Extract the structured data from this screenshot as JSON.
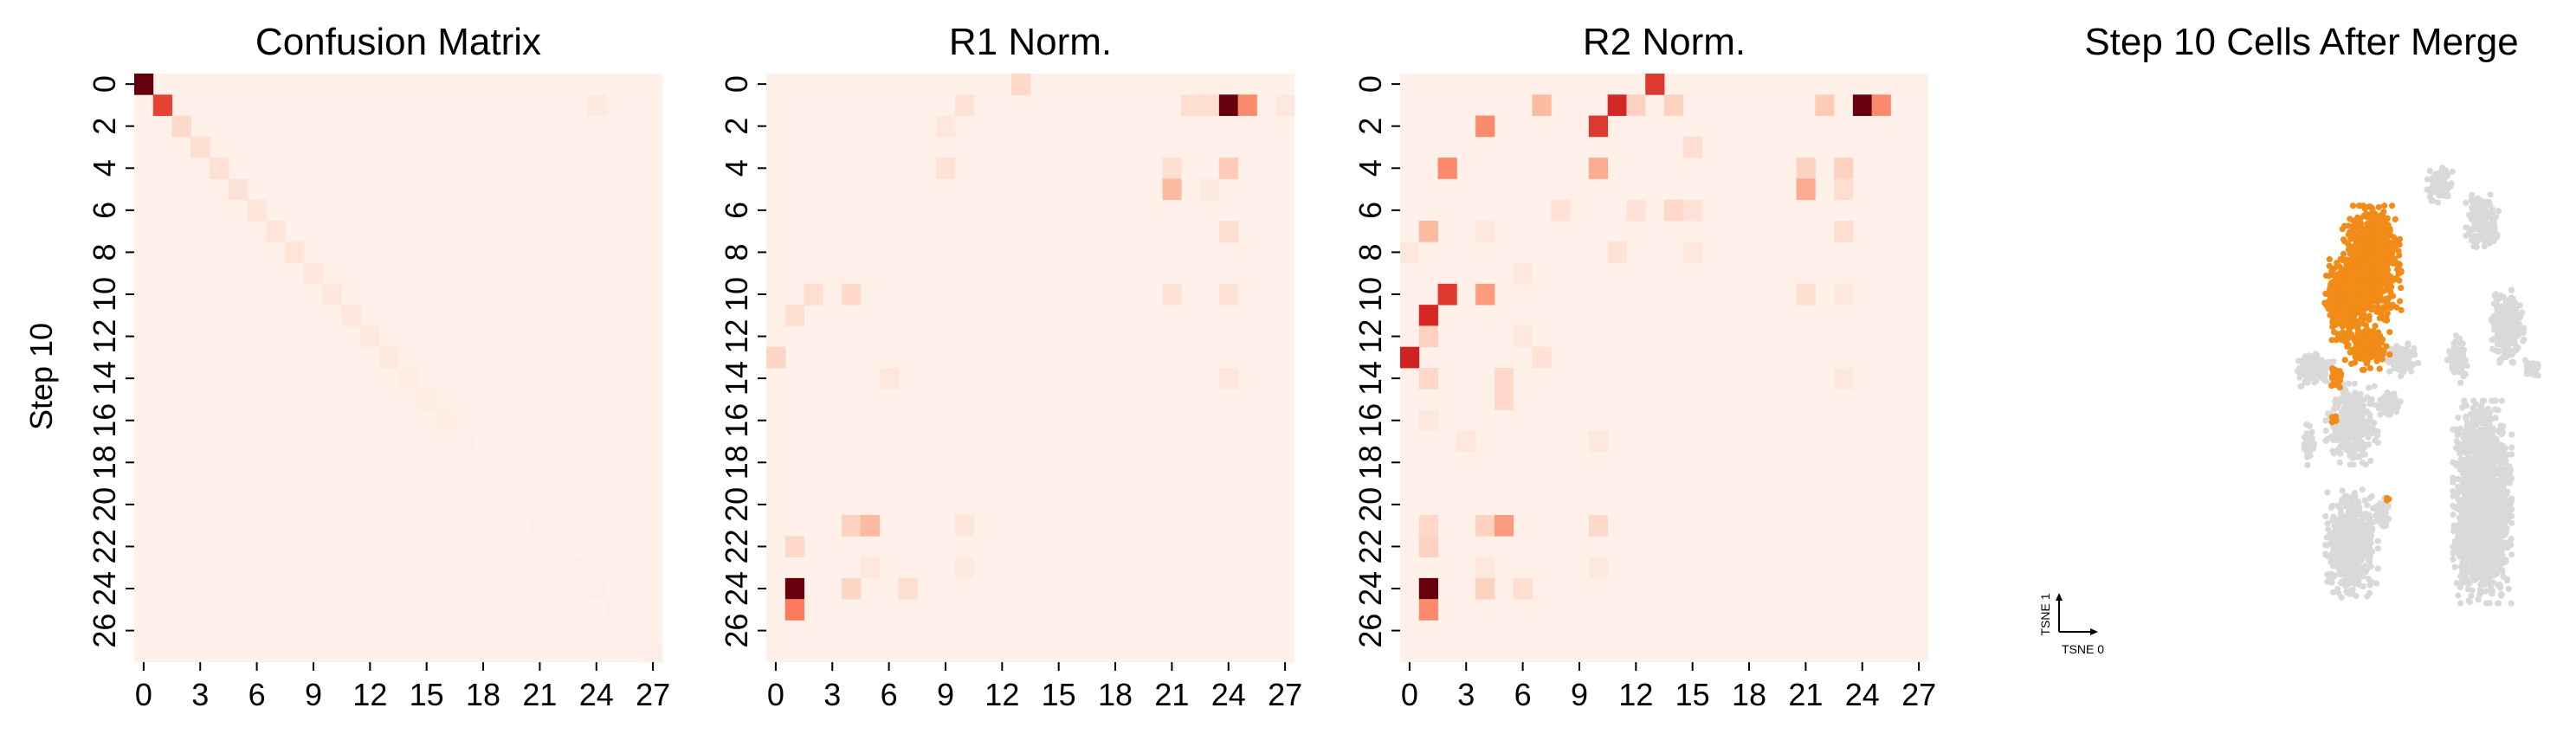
{
  "figure": {
    "ylabel": "Step 10",
    "tsne_axis_x": "TSNE 0",
    "tsne_axis_y": "TSNE 1"
  },
  "chart_data": [
    {
      "type": "heatmap",
      "title": "Confusion Matrix",
      "ylabel": "Step 10",
      "xlabel": "",
      "n_rows": 28,
      "n_cols": 28,
      "x_ticks": [
        0,
        3,
        6,
        9,
        12,
        15,
        18,
        21,
        24,
        27
      ],
      "y_ticks": [
        0,
        2,
        4,
        6,
        8,
        10,
        12,
        14,
        16,
        18,
        20,
        22,
        24,
        26
      ],
      "colormap": [
        "#fff5f0",
        "#fcbba1",
        "#fb6a4a",
        "#cb181d",
        "#67000d"
      ],
      "background_value": 0.02,
      "cells": [
        [
          0,
          0,
          1.0
        ],
        [
          1,
          1,
          0.62
        ],
        [
          2,
          2,
          0.12
        ],
        [
          3,
          3,
          0.1
        ],
        [
          4,
          4,
          0.09
        ],
        [
          5,
          5,
          0.08
        ],
        [
          6,
          6,
          0.07
        ],
        [
          7,
          7,
          0.07
        ],
        [
          8,
          8,
          0.07
        ],
        [
          9,
          9,
          0.06
        ],
        [
          10,
          10,
          0.06
        ],
        [
          11,
          11,
          0.06
        ],
        [
          12,
          12,
          0.05
        ],
        [
          13,
          13,
          0.05
        ],
        [
          14,
          14,
          0.04
        ],
        [
          15,
          15,
          0.04
        ],
        [
          16,
          16,
          0.04
        ],
        [
          17,
          17,
          0.03
        ],
        [
          18,
          18,
          0.03
        ],
        [
          19,
          19,
          0.03
        ],
        [
          20,
          20,
          0.03
        ],
        [
          21,
          21,
          0.03
        ],
        [
          22,
          22,
          0.03
        ],
        [
          23,
          23,
          0.03
        ],
        [
          24,
          24,
          0.03
        ],
        [
          25,
          25,
          0.03
        ],
        [
          26,
          26,
          0.03
        ],
        [
          27,
          27,
          0.03
        ],
        [
          1,
          24,
          0.05
        ]
      ]
    },
    {
      "type": "heatmap",
      "title": "R1 Norm.",
      "n_rows": 28,
      "n_cols": 28,
      "x_ticks": [
        0,
        3,
        6,
        9,
        12,
        15,
        18,
        21,
        24,
        27
      ],
      "y_ticks": [
        0,
        2,
        4,
        6,
        8,
        10,
        12,
        14,
        16,
        18,
        20,
        22,
        24,
        26
      ],
      "colormap": [
        "#fff5f0",
        "#fcbba1",
        "#fb6a4a",
        "#cb181d",
        "#67000d"
      ],
      "background_value": 0.02,
      "cells": [
        [
          0,
          13,
          0.12
        ],
        [
          1,
          10,
          0.08
        ],
        [
          1,
          22,
          0.1
        ],
        [
          1,
          23,
          0.1
        ],
        [
          1,
          24,
          1.0
        ],
        [
          1,
          25,
          0.4
        ],
        [
          1,
          27,
          0.06
        ],
        [
          2,
          9,
          0.06
        ],
        [
          4,
          9,
          0.08
        ],
        [
          4,
          21,
          0.1
        ],
        [
          4,
          24,
          0.18
        ],
        [
          5,
          21,
          0.25
        ],
        [
          5,
          23,
          0.05
        ],
        [
          7,
          24,
          0.1
        ],
        [
          10,
          2,
          0.1
        ],
        [
          10,
          4,
          0.12
        ],
        [
          10,
          21,
          0.08
        ],
        [
          10,
          24,
          0.08
        ],
        [
          11,
          1,
          0.1
        ],
        [
          13,
          0,
          0.14
        ],
        [
          14,
          6,
          0.06
        ],
        [
          14,
          24,
          0.06
        ],
        [
          21,
          4,
          0.15
        ],
        [
          21,
          5,
          0.25
        ],
        [
          21,
          10,
          0.07
        ],
        [
          22,
          1,
          0.12
        ],
        [
          23,
          5,
          0.06
        ],
        [
          23,
          10,
          0.05
        ],
        [
          24,
          1,
          1.0
        ],
        [
          24,
          4,
          0.14
        ],
        [
          24,
          7,
          0.1
        ],
        [
          25,
          1,
          0.45
        ]
      ]
    },
    {
      "type": "heatmap",
      "title": "R2 Norm.",
      "n_rows": 28,
      "n_cols": 28,
      "x_ticks": [
        0,
        3,
        6,
        9,
        12,
        15,
        18,
        21,
        24,
        27
      ],
      "y_ticks": [
        0,
        2,
        4,
        6,
        8,
        10,
        12,
        14,
        16,
        18,
        20,
        22,
        24,
        26
      ],
      "colormap": [
        "#fff5f0",
        "#fcbba1",
        "#fb6a4a",
        "#cb181d",
        "#67000d"
      ],
      "background_value": 0.02,
      "cells": [
        [
          0,
          13,
          0.65
        ],
        [
          1,
          7,
          0.25
        ],
        [
          1,
          11,
          0.7
        ],
        [
          1,
          12,
          0.15
        ],
        [
          1,
          14,
          0.15
        ],
        [
          1,
          22,
          0.18
        ],
        [
          1,
          24,
          1.0
        ],
        [
          1,
          25,
          0.4
        ],
        [
          2,
          4,
          0.4
        ],
        [
          2,
          10,
          0.65
        ],
        [
          3,
          15,
          0.1
        ],
        [
          4,
          2,
          0.4
        ],
        [
          4,
          10,
          0.3
        ],
        [
          4,
          21,
          0.15
        ],
        [
          4,
          23,
          0.15
        ],
        [
          5,
          21,
          0.3
        ],
        [
          5,
          23,
          0.1
        ],
        [
          6,
          8,
          0.08
        ],
        [
          6,
          12,
          0.08
        ],
        [
          6,
          14,
          0.12
        ],
        [
          6,
          15,
          0.08
        ],
        [
          7,
          1,
          0.25
        ],
        [
          7,
          4,
          0.06
        ],
        [
          7,
          23,
          0.1
        ],
        [
          8,
          0,
          0.06
        ],
        [
          8,
          11,
          0.08
        ],
        [
          8,
          15,
          0.06
        ],
        [
          9,
          6,
          0.06
        ],
        [
          10,
          2,
          0.65
        ],
        [
          10,
          4,
          0.35
        ],
        [
          10,
          21,
          0.1
        ],
        [
          10,
          23,
          0.06
        ],
        [
          11,
          1,
          0.7
        ],
        [
          12,
          1,
          0.15
        ],
        [
          12,
          6,
          0.06
        ],
        [
          13,
          0,
          0.72
        ],
        [
          13,
          7,
          0.08
        ],
        [
          14,
          1,
          0.12
        ],
        [
          14,
          5,
          0.12
        ],
        [
          14,
          23,
          0.06
        ],
        [
          15,
          5,
          0.12
        ],
        [
          16,
          1,
          0.06
        ],
        [
          17,
          3,
          0.06
        ],
        [
          17,
          10,
          0.06
        ],
        [
          21,
          1,
          0.12
        ],
        [
          21,
          4,
          0.15
        ],
        [
          21,
          5,
          0.35
        ],
        [
          21,
          10,
          0.12
        ],
        [
          22,
          1,
          0.15
        ],
        [
          23,
          4,
          0.06
        ],
        [
          23,
          10,
          0.06
        ],
        [
          24,
          1,
          1.0
        ],
        [
          24,
          4,
          0.15
        ],
        [
          24,
          6,
          0.1
        ],
        [
          25,
          1,
          0.4
        ]
      ]
    },
    {
      "type": "scatter",
      "title": "Step 10 Cells After Merge",
      "xlabel": "TSNE 0",
      "ylabel": "TSNE 1",
      "grid": false,
      "series": [
        {
          "color": "#d9d9d9",
          "clusters": [
            {
              "cx": 0.72,
              "cy": -0.5,
              "rx": 0.09,
              "ry": 0.3,
              "n": 1900
            },
            {
              "cx": 0.82,
              "cy": 0.18,
              "rx": 0.05,
              "ry": 0.11,
              "n": 260
            },
            {
              "cx": 0.62,
              "cy": 0.05,
              "rx": 0.03,
              "ry": 0.07,
              "n": 90
            },
            {
              "cx": 0.72,
              "cy": 0.58,
              "rx": 0.05,
              "ry": 0.08,
              "n": 200
            },
            {
              "cx": 0.55,
              "cy": 0.72,
              "rx": 0.04,
              "ry": 0.06,
              "n": 80
            },
            {
              "cx": 0.92,
              "cy": 0.02,
              "rx": 0.03,
              "ry": 0.03,
              "n": 40
            },
            {
              "cx": 0.2,
              "cy": -0.2,
              "rx": 0.08,
              "ry": 0.12,
              "n": 320
            },
            {
              "cx": 0.2,
              "cy": -0.66,
              "rx": 0.08,
              "ry": 0.16,
              "n": 560
            },
            {
              "cx": 0.05,
              "cy": 0.01,
              "rx": 0.06,
              "ry": 0.05,
              "n": 140
            },
            {
              "cx": 0.03,
              "cy": -0.28,
              "rx": 0.02,
              "ry": 0.06,
              "n": 50
            },
            {
              "cx": 0.4,
              "cy": 0.05,
              "rx": 0.05,
              "ry": 0.05,
              "n": 100
            },
            {
              "cx": 0.35,
              "cy": -0.12,
              "rx": 0.04,
              "ry": 0.04,
              "n": 60
            },
            {
              "cx": 0.32,
              "cy": -0.55,
              "rx": 0.03,
              "ry": 0.05,
              "n": 50
            }
          ]
        },
        {
          "color": "#f28b17",
          "clusters": [
            {
              "cx": 0.28,
              "cy": 0.42,
              "rx": 0.09,
              "ry": 0.17,
              "n": 900
            },
            {
              "cx": 0.17,
              "cy": 0.28,
              "rx": 0.06,
              "ry": 0.12,
              "n": 330
            },
            {
              "cx": 0.26,
              "cy": 0.1,
              "rx": 0.07,
              "ry": 0.07,
              "n": 170
            },
            {
              "cx": 0.14,
              "cy": -0.02,
              "rx": 0.02,
              "ry": 0.03,
              "n": 40
            },
            {
              "cx": 0.13,
              "cy": -0.18,
              "rx": 0.01,
              "ry": 0.02,
              "n": 10
            },
            {
              "cx": 0.34,
              "cy": -0.49,
              "rx": 0.01,
              "ry": 0.01,
              "n": 3
            }
          ]
        }
      ]
    }
  ]
}
